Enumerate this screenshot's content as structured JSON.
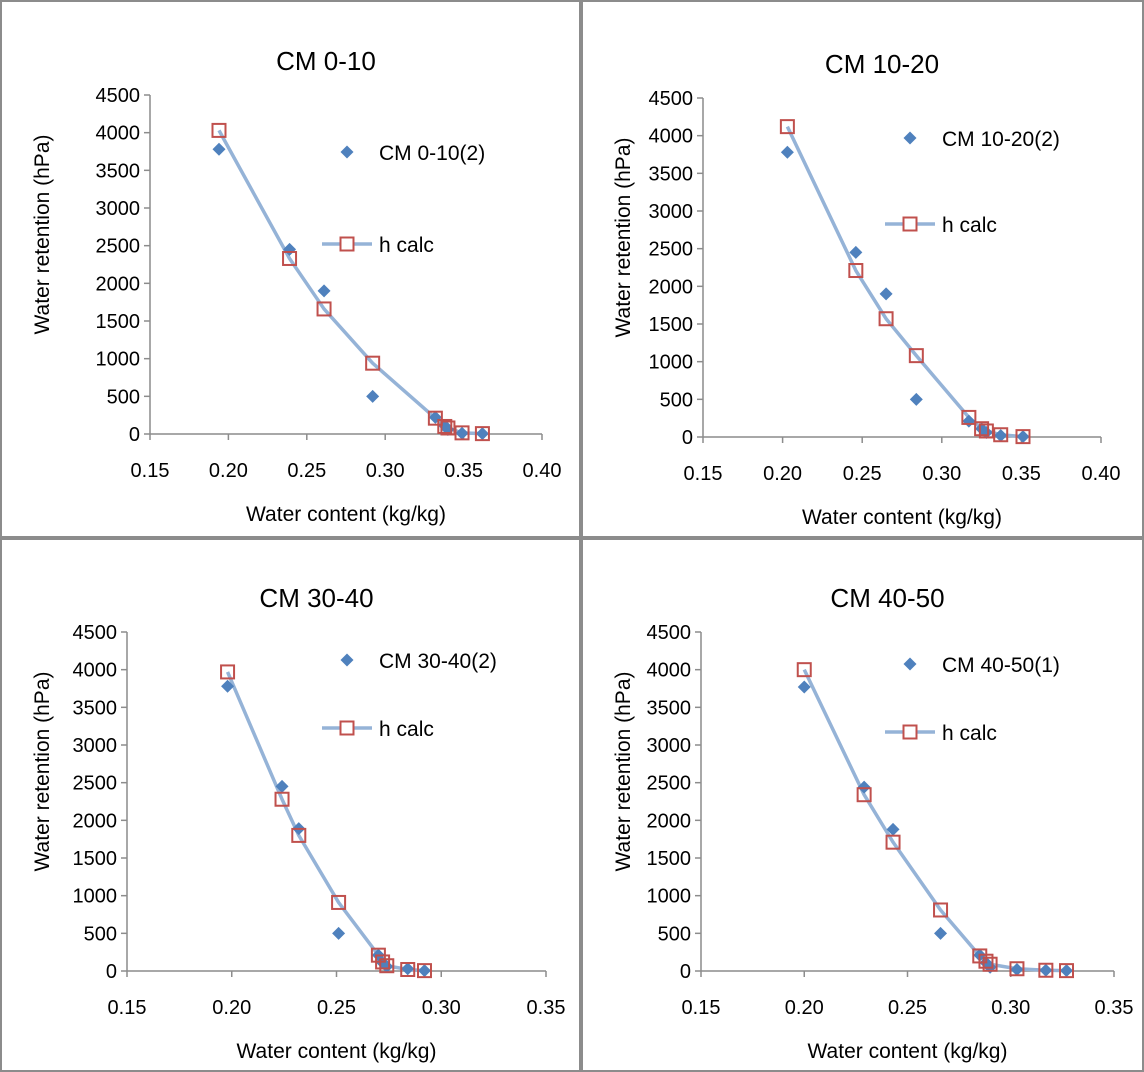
{
  "colors": {
    "observed_marker": "#4f81bd",
    "fit_line": "#95b3d7",
    "fit_marker": "#c0504d",
    "axis": "#8c8c8c",
    "border": "#8c8c8c"
  },
  "chart_data": [
    {
      "type": "scatter",
      "title": "CM 0-10",
      "xlabel": "Water content (kg/kg)",
      "ylabel": "Water retention (hPa)",
      "xlim": [
        0.15,
        0.4
      ],
      "ylim": [
        0,
        4500
      ],
      "xticks": [
        "0.15",
        "0.20",
        "0.25",
        "0.30",
        "0.35",
        "0.40"
      ],
      "yticks": [
        "0",
        "500",
        "1000",
        "1500",
        "2000",
        "2500",
        "3000",
        "3500",
        "4000",
        "4500"
      ],
      "legend_position": "top-right",
      "series": [
        {
          "name": "CM 0-10(2)",
          "style": "markers",
          "x": [
            0.194,
            0.239,
            0.261,
            0.292,
            0.332,
            0.338,
            0.34,
            0.349,
            0.362
          ],
          "y": [
            3780,
            2450,
            1900,
            500,
            220,
            110,
            60,
            10,
            5
          ]
        },
        {
          "name": "h calc",
          "style": "line+markers",
          "x": [
            0.194,
            0.239,
            0.261,
            0.292,
            0.332,
            0.338,
            0.34,
            0.349,
            0.362
          ],
          "y": [
            4030,
            2330,
            1660,
            940,
            210,
            100,
            80,
            15,
            5
          ]
        }
      ]
    },
    {
      "type": "scatter",
      "title": "CM 10-20",
      "xlabel": "Water content (kg/kg)",
      "ylabel": "Water retention (hPa)",
      "xlim": [
        0.15,
        0.4
      ],
      "ylim": [
        0,
        4500
      ],
      "xticks": [
        "0.15",
        "0.20",
        "0.25",
        "0.30",
        "0.35",
        "0.40"
      ],
      "yticks": [
        "0",
        "500",
        "1000",
        "1500",
        "2000",
        "2500",
        "3000",
        "3500",
        "4000",
        "4500"
      ],
      "legend_position": "top-right",
      "series": [
        {
          "name": "CM 10-20(2)",
          "style": "markers",
          "x": [
            0.203,
            0.246,
            0.265,
            0.284,
            0.317,
            0.325,
            0.328,
            0.337,
            0.351
          ],
          "y": [
            3780,
            2450,
            1900,
            500,
            210,
            110,
            60,
            20,
            5
          ]
        },
        {
          "name": "h calc",
          "style": "line+markers",
          "x": [
            0.203,
            0.246,
            0.265,
            0.284,
            0.317,
            0.325,
            0.328,
            0.337,
            0.351
          ],
          "y": [
            4120,
            2210,
            1570,
            1080,
            260,
            110,
            80,
            30,
            5
          ]
        }
      ]
    },
    {
      "type": "scatter",
      "title": "CM 30-40",
      "xlabel": "Water content (kg/kg)",
      "ylabel": "Water retention (hPa)",
      "xlim": [
        0.15,
        0.35
      ],
      "ylim": [
        0,
        4500
      ],
      "xticks": [
        "0.15",
        "0.20",
        "0.25",
        "0.30",
        "0.35"
      ],
      "yticks": [
        "0",
        "500",
        "1000",
        "1500",
        "2000",
        "2500",
        "3000",
        "3500",
        "4000",
        "4500"
      ],
      "legend_position": "top-right",
      "series": [
        {
          "name": "CM 30-40(2)",
          "style": "markers",
          "x": [
            0.198,
            0.224,
            0.232,
            0.251,
            0.27,
            0.272,
            0.274,
            0.284,
            0.292
          ],
          "y": [
            3780,
            2450,
            1890,
            500,
            210,
            110,
            60,
            30,
            5
          ]
        },
        {
          "name": "h calc",
          "style": "line+markers",
          "x": [
            0.198,
            0.224,
            0.232,
            0.251,
            0.27,
            0.272,
            0.274,
            0.284,
            0.292
          ],
          "y": [
            3970,
            2280,
            1800,
            910,
            210,
            120,
            70,
            20,
            5
          ]
        }
      ]
    },
    {
      "type": "scatter",
      "title": "CM 40-50",
      "xlabel": "Water content (kg/kg)",
      "ylabel": "Water retention (hPa)",
      "xlim": [
        0.15,
        0.35
      ],
      "ylim": [
        0,
        4500
      ],
      "xticks": [
        "0.15",
        "0.20",
        "0.25",
        "0.30",
        "0.35"
      ],
      "yticks": [
        "0",
        "500",
        "1000",
        "1500",
        "2000",
        "2500",
        "3000",
        "3500",
        "4000",
        "4500"
      ],
      "legend_position": "top-right",
      "series": [
        {
          "name": "CM 40-50(1)",
          "style": "markers",
          "x": [
            0.2,
            0.229,
            0.243,
            0.266,
            0.285,
            0.288,
            0.29,
            0.303,
            0.317,
            0.327
          ],
          "y": [
            3770,
            2440,
            1880,
            500,
            210,
            110,
            50,
            20,
            10,
            5
          ]
        },
        {
          "name": "h calc",
          "style": "line+markers",
          "x": [
            0.2,
            0.229,
            0.243,
            0.266,
            0.285,
            0.288,
            0.29,
            0.303,
            0.317,
            0.327
          ],
          "y": [
            4000,
            2340,
            1710,
            810,
            200,
            130,
            90,
            30,
            10,
            5
          ]
        }
      ]
    }
  ]
}
